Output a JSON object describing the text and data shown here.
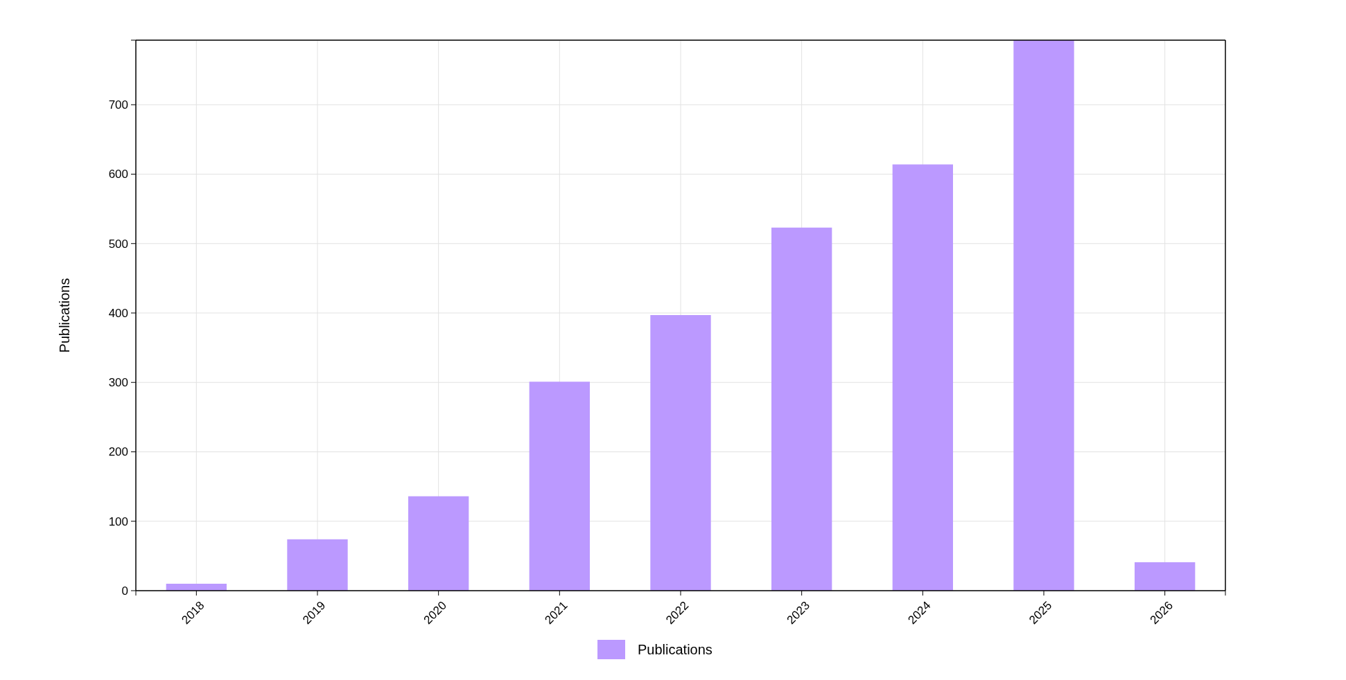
{
  "chart_data": {
    "type": "bar",
    "ylabel": "Publications",
    "categories": [
      "2018",
      "2019",
      "2020",
      "2021",
      "2022",
      "2023",
      "2024",
      "2025",
      "2026"
    ],
    "series": [
      {
        "name": "Publications",
        "color": "#bb99ff",
        "values": [
          10,
          74,
          136,
          301,
          397,
          523,
          614,
          793,
          41
        ]
      }
    ],
    "ylim": [
      0,
      793
    ],
    "yticks": [
      0,
      100,
      200,
      300,
      400,
      500,
      600,
      700,
      {
        "value": 793,
        "label": null
      }
    ],
    "grid": true,
    "legend": "bottom"
  }
}
